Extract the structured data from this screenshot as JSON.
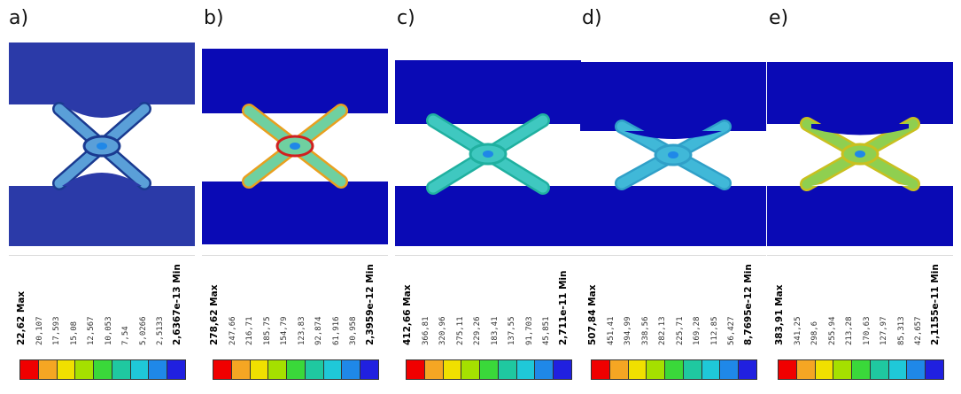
{
  "panels": [
    {
      "label": "a)",
      "legend": [
        "22,62 Max",
        "20,107",
        "17,593",
        "15,08",
        "12,567",
        "10,053",
        "7,54",
        "5,0266",
        "2,5133",
        "2,6367e-13 Min"
      ],
      "colors": [
        "#f00000",
        "#f5a623",
        "#f0e000",
        "#a5e000",
        "#3ad83a",
        "#1fc8a0",
        "#1fc8d8",
        "#1f88e8",
        "#2020e0"
      ]
    },
    {
      "label": "b)",
      "legend": [
        "278,62 Max",
        "247,66",
        "216,71",
        "185,75",
        "154,79",
        "123,83",
        "92,874",
        "61,916",
        "30,958",
        "2,3959e-12 Min"
      ],
      "colors": [
        "#f00000",
        "#f5a623",
        "#f0e000",
        "#a5e000",
        "#3ad83a",
        "#1fc8a0",
        "#1fc8d8",
        "#1f88e8",
        "#2020e0"
      ]
    },
    {
      "label": "c)",
      "legend": [
        "412,66 Max",
        "366,81",
        "320,96",
        "275,11",
        "229,26",
        "183,41",
        "137,55",
        "91,703",
        "45,851",
        "2,711e-11 Min"
      ],
      "colors": [
        "#f00000",
        "#f5a623",
        "#f0e000",
        "#a5e000",
        "#3ad83a",
        "#1fc8a0",
        "#1fc8d8",
        "#1f88e8",
        "#2020e0"
      ]
    },
    {
      "label": "d)",
      "legend": [
        "507,84 Max",
        "451,41",
        "394,99",
        "338,56",
        "282,13",
        "225,71",
        "169,28",
        "112,85",
        "56,427",
        "8,7695e-12 Min"
      ],
      "colors": [
        "#f00000",
        "#f5a623",
        "#f0e000",
        "#a5e000",
        "#3ad83a",
        "#1fc8a0",
        "#1fc8d8",
        "#1f88e8",
        "#2020e0"
      ]
    },
    {
      "label": "e)",
      "legend": [
        "383,91 Max",
        "341,25",
        "298,6",
        "255,94",
        "213,28",
        "170,63",
        "127,97",
        "85,313",
        "42,657",
        "2,1155e-11 Min"
      ],
      "colors": [
        "#f00000",
        "#f5a623",
        "#f0e000",
        "#a5e000",
        "#3ad83a",
        "#1fc8a0",
        "#1fc8d8",
        "#1f88e8",
        "#2020e0"
      ]
    }
  ]
}
